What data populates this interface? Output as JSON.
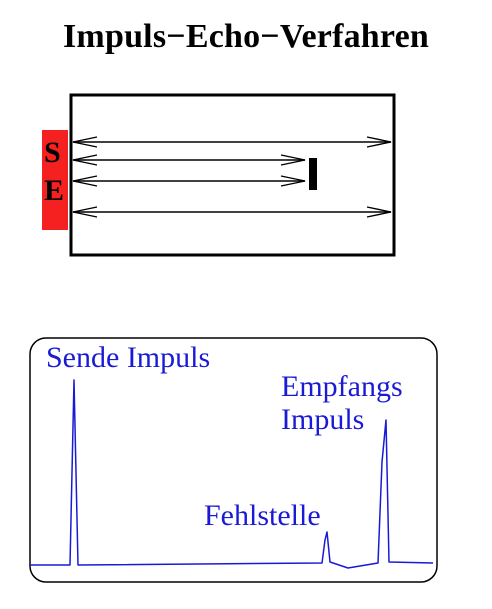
{
  "title": "Impuls−Echo−Verfahren",
  "probe": {
    "sender_letter": "S",
    "receiver_letter": "E",
    "color": "#f52020"
  },
  "oscilloscope": {
    "trace_color": "#1a1ad6",
    "labels": {
      "send_pulse": "Sende Impuls",
      "receive_pulse_line1": "Empfangs",
      "receive_pulse_line2": "Impuls",
      "defect": "Fehlstelle"
    }
  }
}
